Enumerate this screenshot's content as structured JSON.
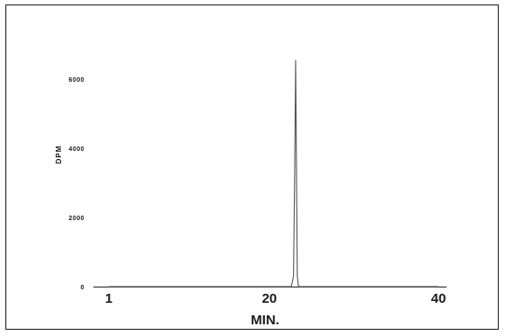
{
  "chart_data": {
    "type": "line",
    "title": "",
    "xlabel": "MIN.",
    "ylabel": "DPM",
    "xlim": [
      1,
      40
    ],
    "ylim": [
      0,
      6000
    ],
    "x_ticks": [
      "1",
      "20",
      "40"
    ],
    "y_ticks": [
      "0",
      "2000",
      "4000",
      "6000"
    ],
    "grid": false,
    "legend": "none",
    "series": [
      {
        "x": [
          1,
          5,
          10,
          15,
          20,
          22.6,
          22.85,
          23.0,
          23.1,
          23.2,
          23.3,
          23.45,
          23.7,
          25,
          30,
          35,
          40
        ],
        "values": [
          0,
          0,
          0,
          0,
          0,
          0,
          300,
          3500,
          6550,
          3500,
          300,
          0,
          0,
          0,
          0,
          0,
          0
        ]
      }
    ]
  },
  "colors": {
    "line": "#555555",
    "axis": "#222222",
    "frame": "#1a1a1a"
  }
}
